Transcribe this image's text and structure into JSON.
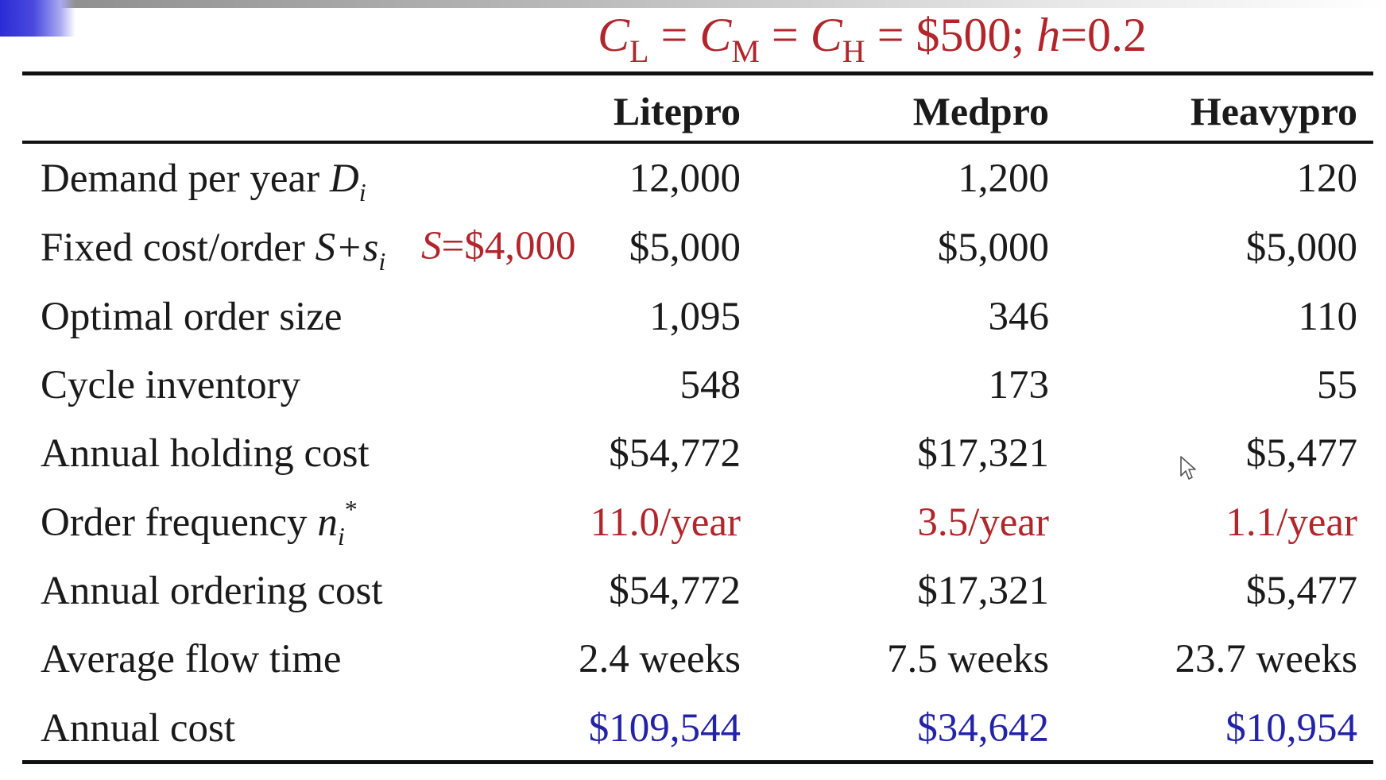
{
  "formula": {
    "c_l": "C",
    "l_sub": "L",
    "eq1": " = ",
    "c_m": "C",
    "m_sub": "M",
    "eq2": " = ",
    "c_h": "C",
    "h_sub": "H",
    "eq3": " = ",
    "value": "$500; ",
    "h": "h",
    "h_value": "=0.2"
  },
  "columns": [
    "Litepro",
    "Medpro",
    "Heavypro"
  ],
  "rows": [
    {
      "label": "Demand per year ",
      "math": "D",
      "sub": "i",
      "values": [
        "12,000",
        "1,200",
        "120"
      ]
    },
    {
      "label": "Fixed cost/order ",
      "math": "S+s",
      "sub": "i",
      "values": [
        "$5,000",
        "$5,000",
        "$5,000"
      ]
    },
    {
      "label": "Optimal order size",
      "values": [
        "1,095",
        "346",
        "110"
      ]
    },
    {
      "label": "Cycle inventory",
      "values": [
        "548",
        "173",
        "55"
      ]
    },
    {
      "label": "Annual holding cost",
      "values": [
        "$54,772",
        "$17,321",
        "$5,477"
      ]
    },
    {
      "label": "Order frequency ",
      "math": "n",
      "sub": "i",
      "sup": "*",
      "values": [
        "11.0/year",
        "3.5/year",
        "1.1/year"
      ]
    },
    {
      "label": "Annual ordering cost",
      "values": [
        "$54,772",
        "$17,321",
        "$5,477"
      ]
    },
    {
      "label": "Average flow time",
      "values": [
        "2.4 weeks",
        "7.5 weeks",
        "23.7 weeks"
      ]
    },
    {
      "label": "Annual cost",
      "values": [
        "$109,544",
        "$34,642",
        "$10,954"
      ]
    }
  ],
  "note": {
    "s": "S",
    "rest": "=$4,000"
  },
  "colors": {
    "red": "#b1252b",
    "blue": "#2323a8",
    "rule": "#111111"
  },
  "icons": {
    "cursor": "mouse-pointer-icon"
  }
}
